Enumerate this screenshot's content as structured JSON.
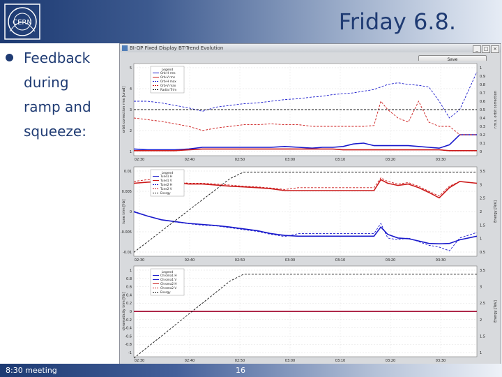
{
  "slide": {
    "title": "Friday 6.8.",
    "bullet_lines": [
      "Feedback",
      "during",
      "ramp and",
      "squeeze:"
    ],
    "footer_left": "8:30 meeting",
    "page_number": "16",
    "logo_text": "CERN"
  },
  "app": {
    "title": "BI-QP Fixed Display BT-Trend Evolution",
    "save_label": "Save",
    "window_buttons": [
      "_",
      "□",
      "×"
    ]
  },
  "panels": [
    {
      "ylabel": "orbit correction rms [urad]",
      "y2label": "r.m.s. orbit correction",
      "yticks": [
        "5",
        "4",
        "3",
        "2",
        "1"
      ],
      "y2ticks": [
        "1",
        "0.9",
        "0.8",
        "0.7",
        "0.6",
        "0.5",
        "0.4",
        "0.3",
        "0.2",
        "0.1",
        "0"
      ],
      "xticks": [
        "02:30",
        "02:40",
        "02:50",
        "03:00",
        "03:10",
        "03:20",
        "03:30"
      ],
      "legend_title": "Legend",
      "legend": [
        "Orb-H rms",
        "Orb-V rms",
        "Orb-H max",
        "Orb-V max",
        "Radial Trim"
      ],
      "colors": [
        "#1a1acc",
        "#cc1a1a",
        "#1a1acc",
        "#cc1a1a",
        "#111111"
      ]
    },
    {
      "ylabel": "tune trim [Hz]",
      "y2label": "Energy [TeV]",
      "yticks": [
        "0.01",
        "0.005",
        "0",
        "-0.005",
        "-0.01"
      ],
      "y2ticks": [
        "3.5",
        "3",
        "2.5",
        "2",
        "1.5",
        "1",
        "0.5"
      ],
      "xticks": [
        "02:30",
        "02:40",
        "02:50",
        "03:00",
        "03:10",
        "03:20",
        "03:30"
      ],
      "legend_title": "Legend",
      "legend": [
        "Tune1 H",
        "Tune1 V",
        "Tune2 H",
        "Tune2 V",
        "Energy"
      ],
      "colors": [
        "#1a1acc",
        "#cc1a1a",
        "#1a1acc",
        "#cc1a1a",
        "#111111"
      ]
    },
    {
      "ylabel": "chromaticity trim [Hz]",
      "y2label": "Energy [TeV]",
      "yticks": [
        "1",
        "0.8",
        "0.6",
        "0.4",
        "0.2",
        "0",
        "-0.2",
        "-0.4",
        "-0.6",
        "-0.8",
        "-1"
      ],
      "y2ticks": [
        "3.5",
        "3",
        "2.5",
        "2",
        "1.5",
        "1"
      ],
      "xticks": [
        "02:30",
        "02:40",
        "02:50",
        "03:00",
        "03:10",
        "03:20",
        "03:30"
      ],
      "legend_title": "Legend",
      "legend": [
        "Chroma1 H",
        "Chroma1 V",
        "Chroma2 H",
        "Chroma2 V",
        "Energy"
      ],
      "colors": [
        "#1a1acc",
        "#1a1acc",
        "#cc1a1a",
        "#cc1a1a",
        "#111111"
      ]
    }
  ],
  "chart_data": [
    {
      "type": "line",
      "ylabel": "orbit correction rms [urad]",
      "y2label": "r.m.s. orbit correction",
      "ylim": [
        0.5,
        5.5
      ],
      "y2lim": [
        -0.05,
        1.05
      ],
      "x": [
        0,
        4,
        8,
        12,
        16,
        20,
        24,
        28,
        32,
        36,
        40,
        44,
        48,
        52,
        55,
        58,
        61,
        64,
        67,
        70,
        72,
        74,
        77,
        80,
        83,
        86,
        89,
        92,
        95,
        100
      ],
      "series": [
        {
          "name": "Orb-H rms",
          "axis": "y2",
          "style": "solid",
          "values": [
            0.03,
            0.02,
            0.02,
            0.02,
            0.03,
            0.05,
            0.05,
            0.05,
            0.05,
            0.05,
            0.05,
            0.06,
            0.05,
            0.04,
            0.05,
            0.05,
            0.06,
            0.09,
            0.1,
            0.07,
            0.07,
            0.07,
            0.07,
            0.07,
            0.06,
            0.05,
            0.04,
            0.08,
            0.2,
            0.2
          ]
        },
        {
          "name": "Orb-V rms",
          "axis": "y2",
          "style": "solid",
          "values": [
            0.01,
            0.01,
            0.01,
            0.01,
            0.02,
            0.03,
            0.03,
            0.03,
            0.03,
            0.03,
            0.03,
            0.03,
            0.03,
            0.03,
            0.03,
            0.03,
            0.02,
            0.02,
            0.02,
            0.02,
            0.02,
            0.02,
            0.02,
            0.02,
            0.02,
            0.02,
            0.02,
            0.01,
            0.01,
            0.01
          ]
        },
        {
          "name": "Orb-H max",
          "axis": "y2",
          "style": "dashed",
          "values": [
            0.6,
            0.6,
            0.58,
            0.55,
            0.52,
            0.48,
            0.53,
            0.55,
            0.57,
            0.58,
            0.6,
            0.62,
            0.63,
            0.65,
            0.66,
            0.68,
            0.69,
            0.7,
            0.72,
            0.74,
            0.77,
            0.8,
            0.82,
            0.8,
            0.79,
            0.77,
            0.6,
            0.4,
            0.5,
            0.95
          ]
        },
        {
          "name": "Orb-V max",
          "axis": "y2",
          "style": "dashed",
          "values": [
            0.4,
            0.38,
            0.36,
            0.33,
            0.3,
            0.25,
            0.28,
            0.3,
            0.32,
            0.32,
            0.33,
            0.32,
            0.32,
            0.3,
            0.3,
            0.3,
            0.3,
            0.3,
            0.3,
            0.31,
            0.6,
            0.5,
            0.4,
            0.35,
            0.6,
            0.35,
            0.3,
            0.3,
            0.2,
            0.2
          ]
        },
        {
          "name": "Radial Trim",
          "axis": "y",
          "style": "dashed",
          "values": [
            3,
            3,
            3,
            3,
            3,
            3,
            3,
            3,
            3,
            3,
            3,
            3,
            3,
            3,
            3,
            3,
            3,
            3,
            3,
            3,
            3,
            3,
            3,
            3,
            3,
            3,
            3,
            3,
            3,
            3
          ]
        }
      ]
    },
    {
      "type": "line",
      "ylabel": "tune trim [Hz]",
      "y2label": "Energy [TeV]",
      "ylim": [
        -0.012,
        0.0125
      ],
      "y2lim": [
        0.3,
        3.7
      ],
      "x": [
        0,
        4,
        8,
        12,
        16,
        20,
        24,
        28,
        32,
        36,
        40,
        44,
        48,
        52,
        55,
        58,
        61,
        64,
        67,
        70,
        72,
        74,
        77,
        80,
        83,
        86,
        89,
        92,
        95,
        100
      ],
      "series": [
        {
          "name": "Tune1 H",
          "axis": "y",
          "style": "solid",
          "values": [
            0.0002,
            -0.001,
            -0.002,
            -0.0025,
            -0.003,
            -0.0033,
            -0.0036,
            -0.004,
            -0.0045,
            -0.005,
            -0.0058,
            -0.0063,
            -0.0065,
            -0.0065,
            -0.0065,
            -0.0065,
            -0.0065,
            -0.0065,
            -0.0065,
            -0.0065,
            -0.004,
            -0.006,
            -0.007,
            -0.0072,
            -0.0078,
            -0.0085,
            -0.0086,
            -0.0085,
            -0.0075,
            -0.0065
          ]
        },
        {
          "name": "Tune1 V",
          "axis": "y",
          "style": "solid",
          "values": [
            0.008,
            0.0083,
            0.0085,
            0.0082,
            0.0078,
            0.0078,
            0.0075,
            0.0072,
            0.007,
            0.0068,
            0.0065,
            0.006,
            0.006,
            0.006,
            0.006,
            0.006,
            0.006,
            0.006,
            0.006,
            0.006,
            0.009,
            0.008,
            0.0074,
            0.0078,
            0.0068,
            0.0055,
            0.004,
            0.0068,
            0.0085,
            0.008
          ]
        },
        {
          "name": "Tune2 H",
          "axis": "y",
          "style": "dashed",
          "values": [
            0.0003,
            -0.001,
            -0.002,
            -0.0026,
            -0.0031,
            -0.0035,
            -0.0037,
            -0.0042,
            -0.0047,
            -0.0052,
            -0.006,
            -0.0066,
            -0.0058,
            -0.0058,
            -0.0058,
            -0.0058,
            -0.0058,
            -0.0058,
            -0.0058,
            -0.0058,
            -0.003,
            -0.007,
            -0.0075,
            -0.007,
            -0.008,
            -0.009,
            -0.0095,
            -0.0105,
            -0.007,
            -0.0055
          ]
        },
        {
          "name": "Tune2 V",
          "axis": "y",
          "style": "dashed",
          "values": [
            0.0085,
            0.009,
            0.009,
            0.0085,
            0.008,
            0.008,
            0.0078,
            0.0075,
            0.0072,
            0.007,
            0.0067,
            0.0063,
            0.0068,
            0.0068,
            0.0068,
            0.0068,
            0.0068,
            0.0068,
            0.0068,
            0.0068,
            0.0095,
            0.0085,
            0.0078,
            0.0082,
            0.0072,
            0.0058,
            0.0045,
            0.0072,
            0.0085,
            0.008
          ]
        },
        {
          "name": "Energy",
          "axis": "y2",
          "style": "dashed",
          "values": [
            0.45,
            0.85,
            1.25,
            1.65,
            2.05,
            2.45,
            2.85,
            3.25,
            3.5,
            3.5,
            3.5,
            3.5,
            3.5,
            3.5,
            3.5,
            3.5,
            3.5,
            3.5,
            3.5,
            3.5,
            3.5,
            3.5,
            3.5,
            3.5,
            3.5,
            3.5,
            3.5,
            3.5,
            3.5,
            3.5
          ]
        }
      ]
    },
    {
      "type": "line",
      "ylabel": "chromaticity trim [Hz]",
      "y2label": "Energy [TeV]",
      "ylim": [
        -1.1,
        1.1
      ],
      "y2lim": [
        0.5,
        3.8
      ],
      "x": [
        0,
        4,
        8,
        12,
        16,
        20,
        24,
        28,
        32,
        36,
        40,
        44,
        48,
        52,
        55,
        58,
        61,
        64,
        67,
        70,
        72,
        74,
        77,
        80,
        83,
        86,
        89,
        92,
        95,
        100
      ],
      "series": [
        {
          "name": "Chroma1 H",
          "axis": "y",
          "style": "solid",
          "values": [
            0,
            0,
            0,
            0,
            0,
            0,
            0,
            0,
            0,
            0,
            0,
            0,
            0,
            0,
            0,
            0,
            0,
            0,
            0,
            0,
            0,
            0,
            0,
            0,
            0,
            0,
            0,
            0,
            0,
            0
          ]
        },
        {
          "name": "Chroma1 V",
          "axis": "y",
          "style": "solid",
          "values": [
            0,
            0,
            0,
            0,
            0,
            0,
            0,
            0,
            0,
            0,
            0,
            0,
            0,
            0,
            0,
            0,
            0,
            0,
            0,
            0,
            0,
            0,
            0,
            0,
            0,
            0,
            0,
            0,
            0,
            0
          ]
        },
        {
          "name": "Chroma2 H",
          "axis": "y",
          "style": "solid",
          "values": [
            0,
            0,
            0,
            0,
            0,
            0,
            0,
            0,
            0,
            0,
            0,
            0,
            0,
            0,
            0,
            0,
            0,
            0,
            0,
            0,
            0,
            0,
            0,
            0,
            0,
            0,
            0,
            0,
            0,
            0
          ]
        },
        {
          "name": "Chroma2 V",
          "axis": "y",
          "style": "dashed",
          "values": [
            0,
            0,
            0,
            0,
            0,
            0,
            0,
            0,
            0,
            0,
            0,
            0,
            0,
            0,
            0,
            0,
            0,
            0,
            0,
            0,
            0,
            0,
            0,
            0,
            0,
            0,
            0,
            0,
            0,
            0
          ]
        },
        {
          "name": "Energy",
          "axis": "y2",
          "style": "dashed",
          "values": [
            0.45,
            0.85,
            1.25,
            1.65,
            2.05,
            2.45,
            2.85,
            3.25,
            3.5,
            3.5,
            3.5,
            3.5,
            3.5,
            3.5,
            3.5,
            3.5,
            3.5,
            3.5,
            3.5,
            3.5,
            3.5,
            3.5,
            3.5,
            3.5,
            3.5,
            3.5,
            3.5,
            3.5,
            3.5,
            3.5
          ]
        }
      ]
    }
  ]
}
